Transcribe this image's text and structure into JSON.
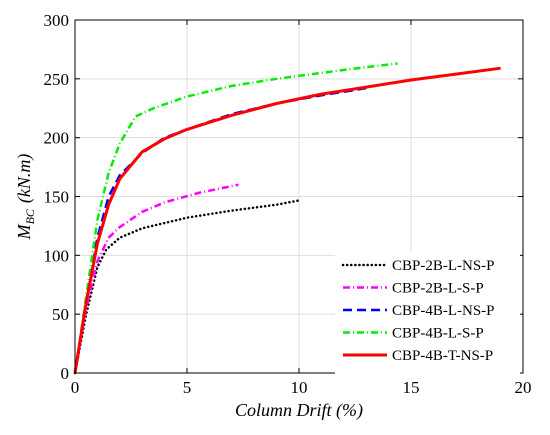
{
  "chart_data": {
    "type": "line",
    "xlabel": "Column Drift (%)",
    "ylabel_main": "M",
    "ylabel_sub": "BC",
    "ylabel_unit": "(kN.m)",
    "xlim": [
      0,
      20
    ],
    "ylim": [
      0,
      300
    ],
    "xticks": [
      0,
      5,
      10,
      15,
      20
    ],
    "yticks": [
      0,
      50,
      100,
      150,
      200,
      250,
      300
    ],
    "grid": true,
    "legend_position": "bottom-right",
    "series": [
      {
        "name": "CBP-2B-L-NS-P",
        "color": "#000000",
        "style": "dotted",
        "x": [
          0,
          0.5,
          1.0,
          1.4,
          2.0,
          3.0,
          5.0,
          7.0,
          9.0,
          10.1
        ],
        "y": [
          0,
          50,
          90,
          105,
          115,
          123,
          132,
          138,
          143,
          147
        ]
      },
      {
        "name": "CBP-2B-L-S-P",
        "color": "#ff00ff",
        "style": "dashdot",
        "x": [
          0,
          0.5,
          1.0,
          1.5,
          2.0,
          3.0,
          4.0,
          5.5,
          7.3
        ],
        "y": [
          0,
          55,
          95,
          115,
          124,
          137,
          145,
          153,
          160
        ]
      },
      {
        "name": "CBP-4B-L-NS-P",
        "color": "#0000ff",
        "style": "dashed",
        "x": [
          0,
          0.5,
          1.0,
          1.5,
          2.0,
          3.0,
          4.0,
          5.0,
          7.0,
          9.0,
          11.0,
          13.0
        ],
        "y": [
          0,
          60,
          115,
          150,
          168,
          187,
          200,
          207,
          220,
          229,
          236,
          242
        ]
      },
      {
        "name": "CBP-4B-L-S-P",
        "color": "#00ee00",
        "style": "dashdot",
        "x": [
          0,
          0.5,
          1.0,
          1.5,
          2.0,
          2.7,
          3.5,
          5.0,
          7.0,
          9.0,
          11.0,
          13.0,
          14.4
        ],
        "y": [
          0,
          65,
          130,
          170,
          195,
          218,
          225,
          235,
          244,
          250,
          255,
          260,
          263
        ]
      },
      {
        "name": "CBP-4B-T-NS-P",
        "color": "#ff0000",
        "style": "solid",
        "x": [
          0,
          0.5,
          1.0,
          1.5,
          2.0,
          3.0,
          4.0,
          5.0,
          7.0,
          9.0,
          11.0,
          13.0,
          15.0,
          17.0,
          19.0
        ],
        "y": [
          0,
          60,
          110,
          143,
          165,
          188,
          199,
          207,
          219,
          229,
          237,
          243,
          249,
          254,
          259
        ]
      }
    ]
  }
}
